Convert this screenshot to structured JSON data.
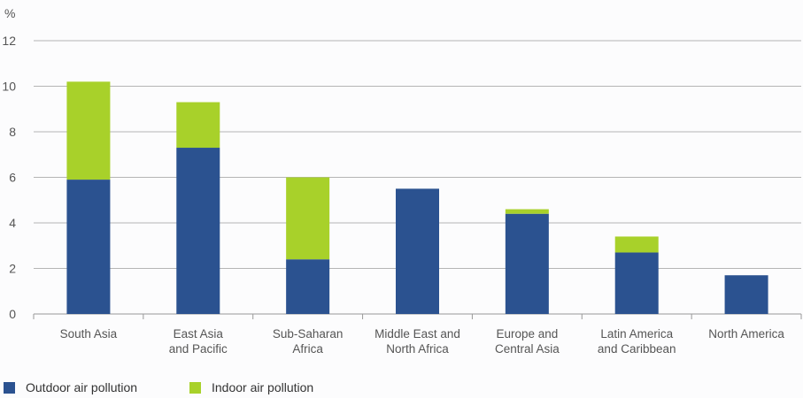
{
  "chart_data": {
    "type": "bar",
    "stacked": true,
    "ylabel": "%",
    "ylim": [
      0,
      12
    ],
    "yticks": [
      0,
      2,
      4,
      6,
      8,
      10,
      12
    ],
    "grid": true,
    "legend_position": "bottom-left",
    "categories": [
      [
        "South Asia"
      ],
      [
        "East Asia",
        "and Pacific"
      ],
      [
        "Sub-Saharan",
        "Africa"
      ],
      [
        "Middle East and",
        "North Africa"
      ],
      [
        "Europe and",
        "Central Asia"
      ],
      [
        "Latin America",
        "and Caribbean"
      ],
      [
        "North America"
      ]
    ],
    "series": [
      {
        "name": "Outdoor air pollution",
        "color": "#2B5290",
        "values": [
          5.9,
          7.3,
          2.4,
          5.5,
          4.4,
          2.7,
          1.7
        ]
      },
      {
        "name": "Indoor air pollution",
        "color": "#A8D12A",
        "values": [
          4.3,
          2.0,
          3.6,
          0,
          0.2,
          0.7,
          0
        ]
      }
    ]
  }
}
